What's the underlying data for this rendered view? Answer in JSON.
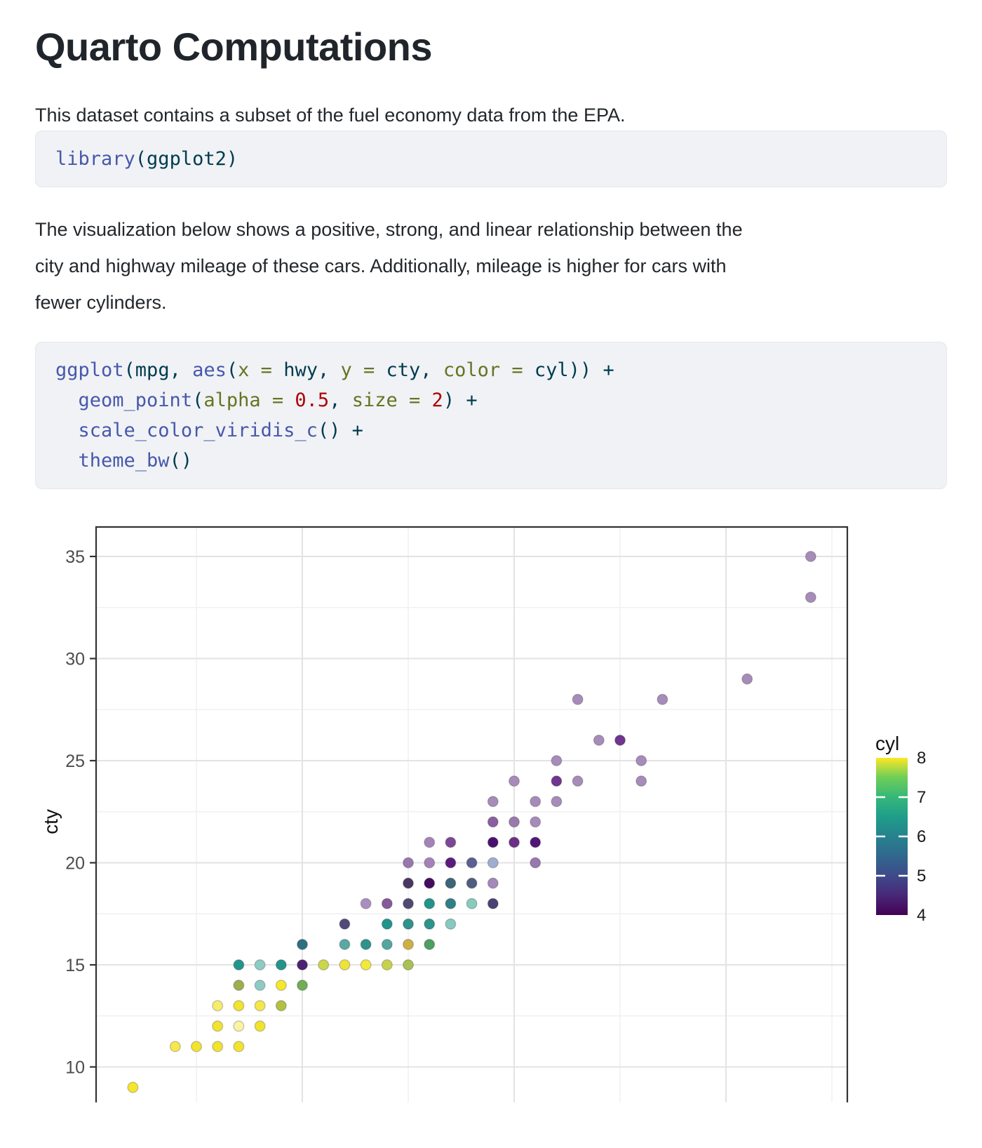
{
  "page": {
    "title": "Quarto Computations",
    "para1": "This dataset contains a subset of the fuel economy data from the EPA.",
    "para2_lines": [
      "The visualization below shows a positive, strong, and linear relationship between the",
      "city and highway mileage of these cars. Additionally, mileage is higher for cars with",
      "fewer cylinders."
    ]
  },
  "syntax_colors": {
    "fn": "#4758AB",
    "pl": "#003B4F",
    "kw": "#657422",
    "num": "#AD0000"
  },
  "code_blocks": [
    {
      "lines": [
        [
          {
            "t": "library",
            "c": "fn"
          },
          {
            "t": "(ggplot2)",
            "c": "pl"
          }
        ]
      ]
    },
    {
      "lines": [
        [
          {
            "t": "ggplot",
            "c": "fn"
          },
          {
            "t": "(mpg, ",
            "c": "pl"
          },
          {
            "t": "aes",
            "c": "fn"
          },
          {
            "t": "(",
            "c": "pl"
          },
          {
            "t": "x",
            "c": "kw"
          },
          {
            "t": " ",
            "c": "pl"
          },
          {
            "t": "=",
            "c": "kw"
          },
          {
            "t": " hwy, ",
            "c": "pl"
          },
          {
            "t": "y",
            "c": "kw"
          },
          {
            "t": " ",
            "c": "pl"
          },
          {
            "t": "=",
            "c": "kw"
          },
          {
            "t": " cty, ",
            "c": "pl"
          },
          {
            "t": "color",
            "c": "kw"
          },
          {
            "t": " ",
            "c": "pl"
          },
          {
            "t": "=",
            "c": "kw"
          },
          {
            "t": " cyl)) ",
            "c": "pl"
          },
          {
            "t": "+",
            "c": "pl"
          }
        ],
        [
          {
            "t": "  ",
            "c": "pl"
          },
          {
            "t": "geom_point",
            "c": "fn"
          },
          {
            "t": "(",
            "c": "pl"
          },
          {
            "t": "alpha",
            "c": "kw"
          },
          {
            "t": " ",
            "c": "pl"
          },
          {
            "t": "=",
            "c": "kw"
          },
          {
            "t": " ",
            "c": "pl"
          },
          {
            "t": "0.5",
            "c": "num"
          },
          {
            "t": ", ",
            "c": "pl"
          },
          {
            "t": "size",
            "c": "kw"
          },
          {
            "t": " ",
            "c": "pl"
          },
          {
            "t": "=",
            "c": "kw"
          },
          {
            "t": " ",
            "c": "pl"
          },
          {
            "t": "2",
            "c": "num"
          },
          {
            "t": ") +",
            "c": "pl"
          }
        ],
        [
          {
            "t": "  ",
            "c": "pl"
          },
          {
            "t": "scale_color_viridis_c",
            "c": "fn"
          },
          {
            "t": "() +",
            "c": "pl"
          }
        ],
        [
          {
            "t": "  ",
            "c": "pl"
          },
          {
            "t": "theme_bw",
            "c": "fn"
          },
          {
            "t": "()",
            "c": "pl"
          }
        ]
      ]
    }
  ],
  "chart_data": {
    "type": "scatter",
    "x_var": "hwy",
    "y_var": "cty",
    "color_var": "cyl",
    "ylabel": "cty",
    "x_ticks_major": [
      20,
      30,
      40
    ],
    "x_ticks_minor": [
      15,
      25,
      35,
      45
    ],
    "y_ticks_major": [
      35,
      30,
      25,
      20,
      15,
      10
    ],
    "y_tick_labels": [
      "35",
      "30",
      "25",
      "20",
      "15",
      "10"
    ],
    "y_ticks_minor": [
      32.5,
      27.5,
      22.5,
      17.5,
      12.5
    ],
    "x_range_visible": [
      10.3,
      45.7
    ],
    "y_range_visible": [
      8.4,
      36.4
    ],
    "grid": true,
    "legend": {
      "title": "cyl",
      "position": "right",
      "range": [
        4,
        8
      ],
      "tick_labels": [
        "8",
        "7",
        "6",
        "5",
        "4"
      ],
      "viridis_stops": [
        "#440154",
        "#482878",
        "#3e4a89",
        "#31688e",
        "#26828e",
        "#1f9e89",
        "#35b779",
        "#6ece58",
        "#fde725"
      ]
    },
    "points_format": [
      "hwy",
      "cty",
      "fill"
    ],
    "points": [
      [
        12,
        9,
        "#f4e62b"
      ],
      [
        14,
        11,
        "#f5e74e"
      ],
      [
        15,
        11,
        "#f2e32e"
      ],
      [
        16,
        11,
        "#f2e32e"
      ],
      [
        17,
        11,
        "#f2e32e"
      ],
      [
        16,
        12,
        "#f2e32e"
      ],
      [
        17,
        12,
        "#faf3a3"
      ],
      [
        18,
        12,
        "#f2e32e"
      ],
      [
        16,
        13,
        "#f7ec6b"
      ],
      [
        17,
        13,
        "#f1e32f"
      ],
      [
        18,
        13,
        "#f4e74e"
      ],
      [
        19,
        13,
        "#b3c043"
      ],
      [
        17,
        14,
        "#9fae4c"
      ],
      [
        18,
        14,
        "#8ecbc5"
      ],
      [
        19,
        14,
        "#f5e72e"
      ],
      [
        20,
        14,
        "#71ad55"
      ],
      [
        17,
        15,
        "#23948c"
      ],
      [
        18,
        15,
        "#8ecbc5"
      ],
      [
        19,
        15,
        "#23948c"
      ],
      [
        20,
        15,
        "#4c2272"
      ],
      [
        21,
        15,
        "#ccd649"
      ],
      [
        22,
        15,
        "#ede33a"
      ],
      [
        23,
        15,
        "#f3e83c"
      ],
      [
        24,
        15,
        "#c9d14b"
      ],
      [
        25,
        15,
        "#a9c153"
      ],
      [
        20,
        16,
        "#2e6f80"
      ],
      [
        22,
        16,
        "#58a8a4"
      ],
      [
        23,
        16,
        "#2e938c"
      ],
      [
        24,
        16,
        "#55a6a0"
      ],
      [
        25,
        16,
        "#cfaf44"
      ],
      [
        26,
        16,
        "#4f9e62"
      ],
      [
        22,
        17,
        "#4f4a78"
      ],
      [
        24,
        17,
        "#23948c"
      ],
      [
        25,
        17,
        "#2e938c"
      ],
      [
        26,
        17,
        "#2e938c"
      ],
      [
        27,
        17,
        "#89c8c0"
      ],
      [
        23,
        18,
        "#a98fc0"
      ],
      [
        24,
        18,
        "#86589c"
      ],
      [
        25,
        18,
        "#4f4a73"
      ],
      [
        26,
        18,
        "#229489"
      ],
      [
        27,
        18,
        "#2f7f86"
      ],
      [
        28,
        18,
        "#86cbbd"
      ],
      [
        29,
        18,
        "#4a4374"
      ],
      [
        25,
        19,
        "#493863"
      ],
      [
        26,
        19,
        "#430d60"
      ],
      [
        27,
        19,
        "#3c6577"
      ],
      [
        28,
        19,
        "#4f5d80"
      ],
      [
        29,
        19,
        "#a289b9"
      ],
      [
        25,
        20,
        "#9a77ae"
      ],
      [
        26,
        20,
        "#a583b8"
      ],
      [
        27,
        20,
        "#5c1a7e"
      ],
      [
        28,
        20,
        "#5a5f94"
      ],
      [
        29,
        20,
        "#9fadd0"
      ],
      [
        31,
        20,
        "#9a77ae"
      ],
      [
        26,
        21,
        "#a583b8"
      ],
      [
        27,
        21,
        "#7e4796"
      ],
      [
        29,
        21,
        "#4a1070"
      ],
      [
        30,
        21,
        "#6b3085"
      ],
      [
        31,
        21,
        "#511677"
      ],
      [
        29,
        22,
        "#8a5fa0"
      ],
      [
        30,
        22,
        "#9b79ad"
      ],
      [
        31,
        22,
        "#a78cba"
      ],
      [
        29,
        23,
        "#a78cba"
      ],
      [
        31,
        23,
        "#a78cba"
      ],
      [
        32,
        23,
        "#a78cba"
      ],
      [
        30,
        24,
        "#a78cba"
      ],
      [
        32,
        24,
        "#6f3590"
      ],
      [
        33,
        24,
        "#a78cba"
      ],
      [
        36,
        24,
        "#a78cba"
      ],
      [
        32,
        25,
        "#a78cba"
      ],
      [
        36,
        25,
        "#a78cba"
      ],
      [
        34,
        26,
        "#a78cba"
      ],
      [
        35,
        26,
        "#6f3590"
      ],
      [
        33,
        28,
        "#a78cba"
      ],
      [
        37,
        28,
        "#a78cba"
      ],
      [
        41,
        29,
        "#a78cba"
      ],
      [
        44,
        33,
        "#a78cba"
      ],
      [
        44,
        35,
        "#a78cba"
      ]
    ],
    "panel": {
      "border_color": "#333333",
      "grid_major_color": "#e3e3e3",
      "grid_minor_color": "#f0f0f0",
      "background": "#ffffff"
    }
  }
}
